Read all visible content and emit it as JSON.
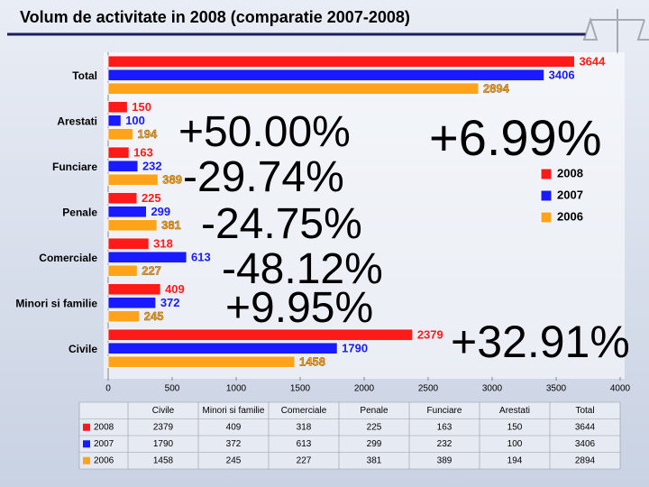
{
  "chart_data": {
    "type": "bar",
    "orientation": "horizontal",
    "title": "Volum de activitate in 2008 (comparatie 2007-2008)",
    "categories": [
      "Total",
      "Arestati",
      "Funciare",
      "Penale",
      "Comerciale",
      "Minori si familie",
      "Civile"
    ],
    "series": [
      {
        "name": "2008",
        "color": "#ff1a1a",
        "values": [
          3644,
          150,
          163,
          225,
          318,
          409,
          2379
        ]
      },
      {
        "name": "2007",
        "color": "#1a1aff",
        "values": [
          3406,
          100,
          232,
          299,
          613,
          372,
          1790
        ]
      },
      {
        "name": "2006",
        "color": "#ffa31a",
        "values": [
          2894,
          194,
          389,
          381,
          227,
          245,
          1458
        ]
      }
    ],
    "xlim": [
      0,
      4000
    ],
    "xticks": [
      0,
      500,
      1000,
      1500,
      2000,
      2500,
      3000,
      3500,
      4000
    ],
    "grid": false,
    "legend": "right",
    "annotations": [
      "+50.00%",
      "-29.74%",
      "-24.75%",
      "-48.12%",
      "+9.95%",
      "+6.99%",
      "+32.91%"
    ]
  }
}
